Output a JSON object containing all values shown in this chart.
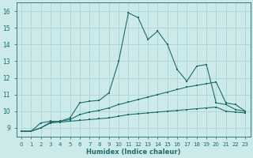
{
  "bg_color": "#cceaea",
  "grid_color": "#b0d8d8",
  "line_color": "#1e6b6b",
  "xlabel": "Humidex (Indice chaleur)",
  "xlim": [
    -0.5,
    23.5
  ],
  "ylim": [
    8.5,
    16.5
  ],
  "yticks": [
    9,
    10,
    11,
    12,
    13,
    14,
    15,
    16
  ],
  "xticks": [
    0,
    1,
    2,
    3,
    4,
    5,
    6,
    7,
    8,
    9,
    10,
    11,
    12,
    13,
    14,
    15,
    16,
    17,
    18,
    19,
    20,
    21,
    22,
    23
  ],
  "line1_x": [
    0,
    1,
    2,
    3,
    4,
    5,
    6,
    7,
    8,
    9,
    10,
    11,
    12,
    13,
    14,
    15,
    16,
    17,
    18,
    19,
    20,
    21,
    22,
    23
  ],
  "line1_y": [
    8.8,
    8.8,
    9.0,
    9.35,
    9.4,
    9.6,
    10.5,
    10.6,
    10.65,
    11.1,
    13.0,
    15.9,
    15.6,
    14.3,
    14.8,
    14.0,
    12.5,
    11.8,
    12.7,
    12.8,
    10.5,
    10.4,
    10.1,
    10.0
  ],
  "line2_x": [
    0,
    1,
    2,
    3,
    4,
    5,
    6,
    7,
    8,
    9,
    10,
    11,
    12,
    13,
    14,
    15,
    16,
    17,
    18,
    19,
    20,
    21,
    22,
    23
  ],
  "line2_y": [
    8.8,
    8.8,
    9.3,
    9.4,
    9.4,
    9.5,
    9.8,
    9.95,
    10.05,
    10.2,
    10.4,
    10.55,
    10.7,
    10.85,
    11.0,
    11.15,
    11.3,
    11.45,
    11.55,
    11.65,
    11.75,
    10.5,
    10.4,
    10.0
  ],
  "line3_x": [
    0,
    1,
    2,
    3,
    4,
    5,
    6,
    7,
    8,
    9,
    10,
    11,
    12,
    13,
    14,
    15,
    16,
    17,
    18,
    19,
    20,
    21,
    22,
    23
  ],
  "line3_y": [
    8.8,
    8.8,
    9.0,
    9.3,
    9.35,
    9.4,
    9.45,
    9.5,
    9.55,
    9.6,
    9.7,
    9.8,
    9.85,
    9.9,
    9.95,
    10.0,
    10.05,
    10.1,
    10.15,
    10.2,
    10.25,
    10.0,
    9.95,
    9.9
  ]
}
